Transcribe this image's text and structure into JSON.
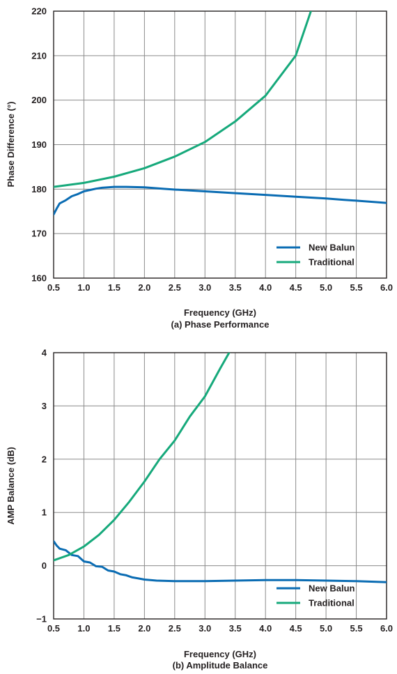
{
  "chart_data": [
    {
      "type": "line",
      "title": "(a) Phase Performance",
      "xlabel": "Frequency (GHz)",
      "ylabel": "Phase Difference (°)",
      "xlim": [
        0.5,
        6.0
      ],
      "ylim": [
        160,
        220
      ],
      "xticks": [
        "0.5",
        "1.0",
        "1.5",
        "2.0",
        "2.5",
        "3.0",
        "3.5",
        "4.0",
        "4.5",
        "5.0",
        "5.5",
        "6.0"
      ],
      "yticks": [
        "160",
        "170",
        "180",
        "190",
        "200",
        "210",
        "220"
      ],
      "grid": true,
      "legend": "bottom-right",
      "series": [
        {
          "name": "New Balun",
          "color": "#0a6cb3",
          "x": [
            0.5,
            0.55,
            0.6,
            0.7,
            0.8,
            0.9,
            1.0,
            1.1,
            1.2,
            1.3,
            1.5,
            1.7,
            2.0,
            2.3,
            2.5,
            3.0,
            3.5,
            4.0,
            4.5,
            5.0,
            5.3,
            5.5,
            6.0
          ],
          "values": [
            174.3,
            175.6,
            176.8,
            177.5,
            178.4,
            178.9,
            179.5,
            179.8,
            180.1,
            180.3,
            180.5,
            180.5,
            180.4,
            180.1,
            179.9,
            179.5,
            179.1,
            178.7,
            178.3,
            177.9,
            177.6,
            177.4,
            176.9
          ]
        },
        {
          "name": "Traditional",
          "color": "#16a97b",
          "x": [
            0.5,
            1.0,
            1.5,
            2.0,
            2.5,
            3.0,
            3.5,
            4.0,
            4.5,
            4.75
          ],
          "values": [
            180.5,
            181.4,
            182.8,
            184.7,
            187.3,
            190.6,
            195.2,
            201.0,
            210.0,
            220.0
          ]
        }
      ]
    },
    {
      "type": "line",
      "title": "(b) Amplitude Balance",
      "xlabel": "Frequency (GHz)",
      "ylabel": "AMP Balance (dB)",
      "xlim": [
        0.5,
        6.0
      ],
      "ylim": [
        -1,
        4
      ],
      "xticks": [
        "0.5",
        "1.0",
        "1.5",
        "2.0",
        "2.5",
        "3.0",
        "3.5",
        "4.0",
        "4.5",
        "5.0",
        "5.5",
        "6.0"
      ],
      "yticks": [
        "−1",
        "0",
        "1",
        "2",
        "3",
        "4"
      ],
      "grid": true,
      "legend": "bottom-right",
      "series": [
        {
          "name": "New Balun",
          "color": "#0a6cb3",
          "x": [
            0.5,
            0.55,
            0.6,
            0.7,
            0.8,
            0.9,
            1.0,
            1.1,
            1.2,
            1.3,
            1.4,
            1.5,
            1.6,
            1.7,
            1.8,
            1.9,
            2.0,
            2.2,
            2.5,
            3.0,
            3.5,
            4.0,
            4.5,
            5.0,
            5.5,
            6.0
          ],
          "values": [
            0.46,
            0.38,
            0.32,
            0.29,
            0.2,
            0.18,
            0.08,
            0.06,
            -0.01,
            -0.02,
            -0.09,
            -0.11,
            -0.16,
            -0.18,
            -0.22,
            -0.24,
            -0.26,
            -0.28,
            -0.29,
            -0.29,
            -0.28,
            -0.27,
            -0.27,
            -0.28,
            -0.29,
            -0.31
          ]
        },
        {
          "name": "Traditional",
          "color": "#16a97b",
          "x": [
            0.5,
            0.75,
            1.0,
            1.25,
            1.5,
            1.75,
            2.0,
            2.25,
            2.5,
            2.75,
            3.0,
            3.25,
            3.4
          ],
          "values": [
            0.1,
            0.2,
            0.36,
            0.58,
            0.86,
            1.2,
            1.58,
            2.0,
            2.35,
            2.8,
            3.18,
            3.7,
            4.0
          ]
        }
      ]
    }
  ]
}
